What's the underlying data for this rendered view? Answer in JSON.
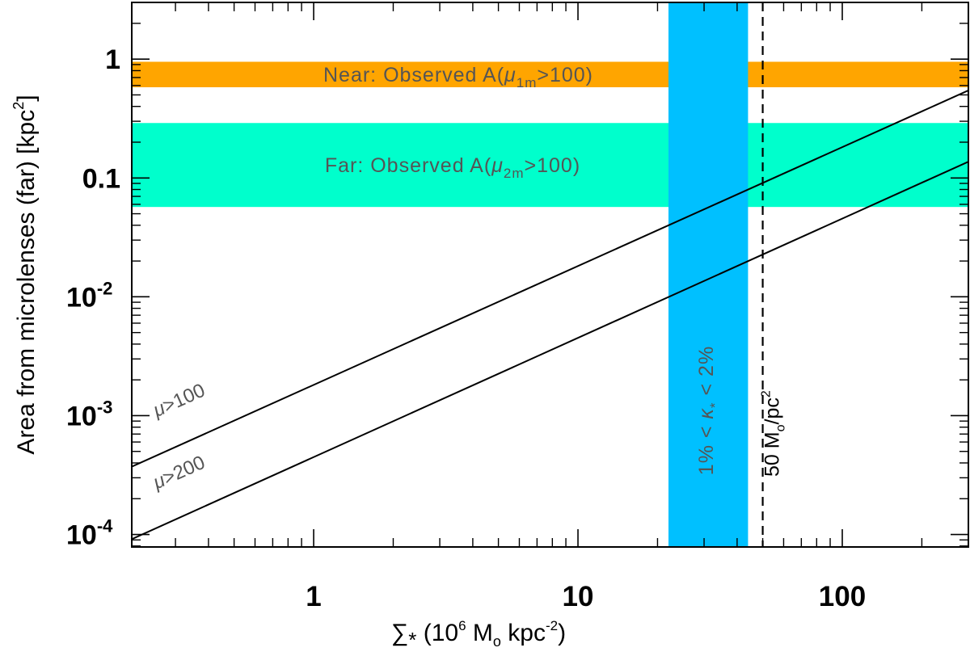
{
  "chart_data": {
    "type": "line",
    "xscale": "log",
    "yscale": "log",
    "xlim": [
      0.205,
      300
    ],
    "ylim": [
      7.85e-05,
      3.0
    ],
    "xlabel": {
      "sigma": "∑",
      "star": "*",
      "paren_open": "(10",
      "exp6": "6",
      "mid": " M",
      "sun": "o",
      "unit": " kpc",
      "expm2": "-2",
      "paren_close": ")"
    },
    "ylabel": {
      "main": "Area from microlenses (far) [kpc",
      "exp": "2",
      "close": "]"
    },
    "x_ticks": [
      {
        "value": 1,
        "label": "1"
      },
      {
        "value": 10,
        "label": "10"
      },
      {
        "value": 100,
        "label": "100"
      }
    ],
    "y_ticks": [
      {
        "value": 1,
        "label": "1",
        "mantissa": "",
        "exp": ""
      },
      {
        "value": 0.1,
        "label": "0.1",
        "mantissa": "",
        "exp": ""
      },
      {
        "value": 0.01,
        "label": "",
        "mantissa": "10",
        "exp": "-2"
      },
      {
        "value": 0.001,
        "label": "",
        "mantissa": "10",
        "exp": "-3"
      },
      {
        "value": 0.0001,
        "label": "",
        "mantissa": "10",
        "exp": "-4"
      }
    ],
    "series": [
      {
        "label": {
          "mu": "μ",
          "rest": ">100"
        },
        "x": [
          0.205,
          300
        ],
        "y": [
          0.000372,
          0.545
        ],
        "color": "#000000"
      },
      {
        "label": {
          "mu": "μ",
          "rest": ">200"
        },
        "x": [
          0.205,
          300
        ],
        "y": [
          9.13e-05,
          0.137
        ],
        "color": "#000000"
      }
    ],
    "hbands": [
      {
        "y_range": [
          0.58,
          0.95
        ],
        "color": "#ffa500",
        "label": {
          "pre": "Near: Observed A(",
          "mu": "μ",
          "sub": "1m",
          "post": ">100)"
        }
      },
      {
        "y_range": [
          0.057,
          0.29
        ],
        "color": "#00ffcc",
        "label": {
          "pre": "Far: Observed A(",
          "mu": "μ",
          "sub": "2m",
          "post": ">100)"
        }
      }
    ],
    "vband": {
      "x_range": [
        22,
        44
      ],
      "color": "#00c0ff",
      "label": {
        "p1": "1% < ",
        "kappa": "κ",
        "sub": "*",
        "p2": " < 2%"
      }
    },
    "vline": {
      "x": 50,
      "style": "dashed",
      "color": "#000000",
      "label": {
        "pre": "50  M",
        "sub": "o",
        "mid": "/pc",
        "sup": "2"
      }
    }
  }
}
